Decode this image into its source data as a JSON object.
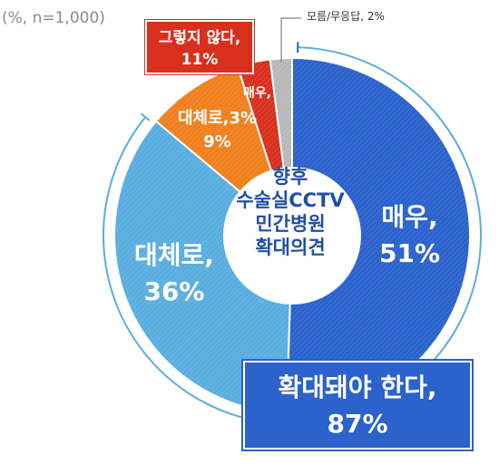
{
  "unit_note": "(%, n=1,000)",
  "center_title": [
    "향후",
    "수술실CCTV",
    "민간병원",
    "확대의견"
  ],
  "labels": {
    "very_line1": "매우,",
    "very_line2": "51%",
    "generally_line1": "대체로,",
    "generally_line2": "36%",
    "generally_no_line1": "대체로,3%",
    "generally_no_line2": "9%",
    "very_no_line1": "매우,",
    "not_agree_line1": "그렇지 않다,",
    "not_agree_line2": "11%",
    "dont_know": "모름/무응답, 2%",
    "expand_line1": "확대돼야 한다,",
    "expand_line2": "87%"
  },
  "colors": {
    "dark_blue": "#2b62cc",
    "light_blue": "#5aaee0",
    "orange": "#f0801e",
    "red": "#d9301e",
    "gray": "#b8b8b8"
  },
  "chart_data": {
    "type": "pie",
    "style": "donut",
    "title": "향후 수술실CCTV 민간병원 확대의견",
    "unit": "%",
    "n": 1000,
    "slices": [
      {
        "label": "매우",
        "value": 51,
        "color": "#2b62cc"
      },
      {
        "label": "대체로",
        "value": 36,
        "color": "#5aaee0"
      },
      {
        "label": "대체로",
        "value": 9,
        "color": "#f0801e"
      },
      {
        "label": "매우",
        "value": 3,
        "color": "#d9301e"
      },
      {
        "label": "모름/무응답",
        "value": 2,
        "color": "#b8b8b8"
      }
    ],
    "groups": [
      {
        "label": "확대돼야 한다",
        "value": 87
      },
      {
        "label": "그렇지 않다",
        "value": 11
      }
    ]
  }
}
